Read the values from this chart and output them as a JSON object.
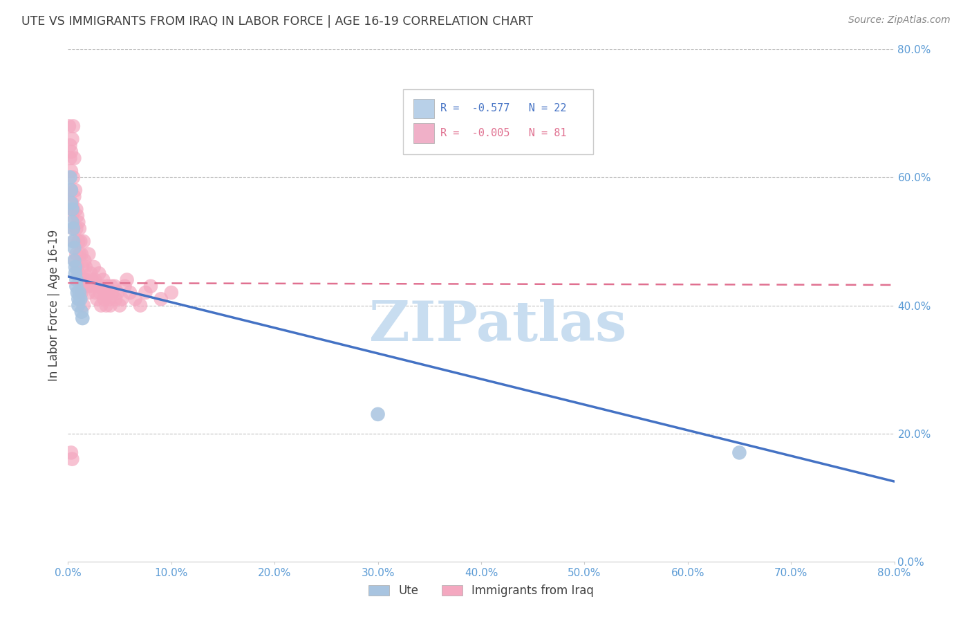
{
  "title": "UTE VS IMMIGRANTS FROM IRAQ IN LABOR FORCE | AGE 16-19 CORRELATION CHART",
  "source_text": "Source: ZipAtlas.com",
  "ylabel": "In Labor Force | Age 16-19",
  "xlim": [
    0.0,
    0.8
  ],
  "ylim": [
    0.0,
    0.8
  ],
  "xticks": [
    0.0,
    0.1,
    0.2,
    0.3,
    0.4,
    0.5,
    0.6,
    0.7,
    0.8
  ],
  "yticks": [
    0.0,
    0.2,
    0.4,
    0.6,
    0.8
  ],
  "ute_R": -0.577,
  "ute_N": 22,
  "iraq_R": -0.005,
  "iraq_N": 81,
  "ute_color": "#a8c4e0",
  "iraq_color": "#f4a8c0",
  "ute_line_color": "#4472c4",
  "iraq_line_color": "#e07090",
  "watermark": "ZIPatlas",
  "watermark_color": "#c8ddf0",
  "title_color": "#404040",
  "axis_label_color": "#404040",
  "tick_label_color": "#5b9bd5",
  "grid_color": "#c0c0c0",
  "ute_x": [
    0.002,
    0.003,
    0.003,
    0.004,
    0.004,
    0.005,
    0.005,
    0.006,
    0.006,
    0.007,
    0.007,
    0.008,
    0.008,
    0.009,
    0.01,
    0.01,
    0.011,
    0.012,
    0.013,
    0.014,
    0.3,
    0.65
  ],
  "ute_y": [
    0.6,
    0.58,
    0.56,
    0.55,
    0.53,
    0.52,
    0.5,
    0.49,
    0.47,
    0.46,
    0.45,
    0.44,
    0.43,
    0.42,
    0.41,
    0.4,
    0.42,
    0.41,
    0.39,
    0.38,
    0.23,
    0.17
  ],
  "iraq_x": [
    0.001,
    0.002,
    0.002,
    0.003,
    0.003,
    0.003,
    0.004,
    0.004,
    0.004,
    0.005,
    0.005,
    0.005,
    0.005,
    0.006,
    0.006,
    0.006,
    0.007,
    0.007,
    0.008,
    0.008,
    0.008,
    0.009,
    0.009,
    0.01,
    0.01,
    0.01,
    0.011,
    0.011,
    0.012,
    0.012,
    0.013,
    0.013,
    0.014,
    0.014,
    0.015,
    0.015,
    0.016,
    0.016,
    0.017,
    0.018,
    0.019,
    0.02,
    0.02,
    0.022,
    0.023,
    0.024,
    0.025,
    0.026,
    0.027,
    0.028,
    0.029,
    0.03,
    0.031,
    0.032,
    0.033,
    0.034,
    0.035,
    0.036,
    0.037,
    0.038,
    0.039,
    0.04,
    0.041,
    0.042,
    0.043,
    0.045,
    0.046,
    0.048,
    0.05,
    0.052,
    0.055,
    0.057,
    0.06,
    0.065,
    0.07,
    0.075,
    0.08,
    0.09,
    0.1,
    0.003,
    0.004
  ],
  "iraq_y": [
    0.68,
    0.65,
    0.63,
    0.61,
    0.64,
    0.58,
    0.66,
    0.56,
    0.54,
    0.68,
    0.6,
    0.55,
    0.52,
    0.63,
    0.57,
    0.5,
    0.58,
    0.47,
    0.55,
    0.52,
    0.48,
    0.54,
    0.46,
    0.53,
    0.5,
    0.45,
    0.52,
    0.48,
    0.5,
    0.44,
    0.48,
    0.42,
    0.46,
    0.43,
    0.5,
    0.4,
    0.47,
    0.44,
    0.46,
    0.44,
    0.43,
    0.48,
    0.42,
    0.45,
    0.44,
    0.43,
    0.46,
    0.44,
    0.42,
    0.41,
    0.43,
    0.45,
    0.42,
    0.4,
    0.43,
    0.44,
    0.41,
    0.42,
    0.4,
    0.43,
    0.42,
    0.41,
    0.4,
    0.43,
    0.42,
    0.43,
    0.41,
    0.42,
    0.4,
    0.41,
    0.43,
    0.44,
    0.42,
    0.41,
    0.4,
    0.42,
    0.43,
    0.41,
    0.42,
    0.17,
    0.16
  ],
  "background_color": "#ffffff",
  "legend_box_color_ute": "#b8d0e8",
  "legend_box_color_iraq": "#f0b0c8"
}
